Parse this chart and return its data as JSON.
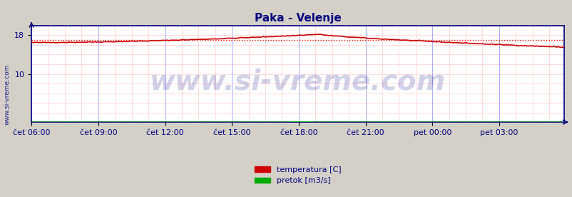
{
  "title": "Paka - Velenje",
  "title_color": "#000080",
  "title_fontsize": 11,
  "bg_color": "#d4d0c8",
  "plot_bg_color": "#ffffff",
  "xlabel_color": "#000080",
  "ylabel_color": "#000080",
  "watermark": "www.si-vreme.com",
  "watermark_color": "#000080",
  "watermark_alpha": 0.18,
  "watermark_fontsize": 28,
  "x_tick_labels": [
    "čet 06:00",
    "čet 09:00",
    "čet 12:00",
    "čet 15:00",
    "čet 18:00",
    "čet 21:00",
    "pet 00:00",
    "pet 03:00"
  ],
  "x_tick_positions": [
    0,
    36,
    72,
    108,
    144,
    180,
    216,
    252
  ],
  "ylim": [
    0,
    20
  ],
  "yticks": [
    10,
    18
  ],
  "avg_line_value": 17.0,
  "avg_line_color": "#ff0000",
  "temp_color": "#cc0000",
  "flow_color": "#00aa00",
  "axis_color": "#000080",
  "grid_color_major_v": "#aaaaff",
  "grid_color_minor_v": "#ffcccc",
  "grid_color_h": "#ffcccc",
  "legend_temp": "temperatura [C]",
  "legend_flow": "pretok [m3/s]",
  "legend_color": "#000080",
  "n_points": 288,
  "temp_start": 16.5,
  "temp_peak": 18.2,
  "temp_peak_idx": 155,
  "temp_end": 15.5,
  "side_label": "www.si-vreme.com"
}
